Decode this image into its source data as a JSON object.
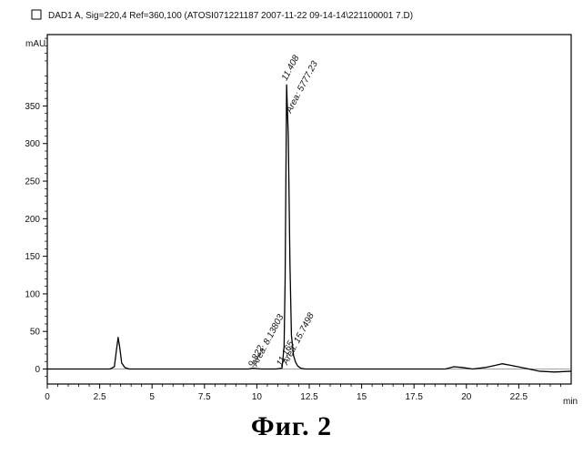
{
  "chart_data": {
    "type": "line",
    "title": "DAD1 A, Sig=220,4 Ref=360,100 (ATOSI071221187 2007-11-22 09-14-14\\221100001 7.D)",
    "ylabel": "mAU",
    "xlabel": "min",
    "xlim": [
      0,
      25
    ],
    "ylim": [
      -20,
      445
    ],
    "x_ticks": [
      0,
      2.5,
      5,
      7.5,
      10,
      12.5,
      15,
      17.5,
      20,
      22.5
    ],
    "x_tick_labels": [
      "0",
      "2.5",
      "5",
      "7.5",
      "10",
      "12.5",
      "15",
      "17.5",
      "20",
      "22.5"
    ],
    "y_ticks": [
      0,
      50,
      100,
      150,
      200,
      250,
      300,
      350
    ],
    "y_tick_labels": [
      "0",
      "50",
      "100",
      "150",
      "200",
      "250",
      "300",
      "350"
    ],
    "series": [
      {
        "x": [
          0,
          3.0,
          3.2,
          3.3,
          3.38,
          3.45,
          3.55,
          3.7,
          3.9,
          6.0,
          9.6,
          9.8,
          10.2,
          10.9,
          11.2,
          11.3,
          11.35,
          11.42,
          11.5,
          11.58,
          11.65,
          11.75,
          11.85,
          11.95,
          12.1,
          12.3,
          13.0,
          19.0,
          19.4,
          19.8,
          20.3,
          20.9,
          21.4,
          21.7,
          22.1,
          22.8,
          23.5,
          24.2,
          25.0
        ],
        "y": [
          0,
          0,
          3,
          25,
          42,
          30,
          8,
          2,
          0,
          0,
          0,
          1,
          0,
          0,
          1,
          30,
          120,
          378,
          310,
          140,
          45,
          18,
          9,
          4,
          1,
          0,
          0,
          0,
          3,
          2,
          0,
          2,
          5,
          7,
          5,
          1,
          -3,
          -4,
          -3
        ]
      }
    ],
    "annotations": [
      {
        "x": 9.822,
        "y": 2,
        "text": "9.822"
      },
      {
        "x": 10.0,
        "y": 3,
        "text": "Area: 8.13803"
      },
      {
        "x": 11.165,
        "y": 3,
        "text": "11.165"
      },
      {
        "x": 11.45,
        "y": 5,
        "text": "Area: 15.7498"
      },
      {
        "x": 11.408,
        "y": 383,
        "text": "11.408"
      },
      {
        "x": 11.62,
        "y": 340,
        "text": "Area: 5777.23"
      }
    ]
  },
  "caption": "Фиг. 2"
}
